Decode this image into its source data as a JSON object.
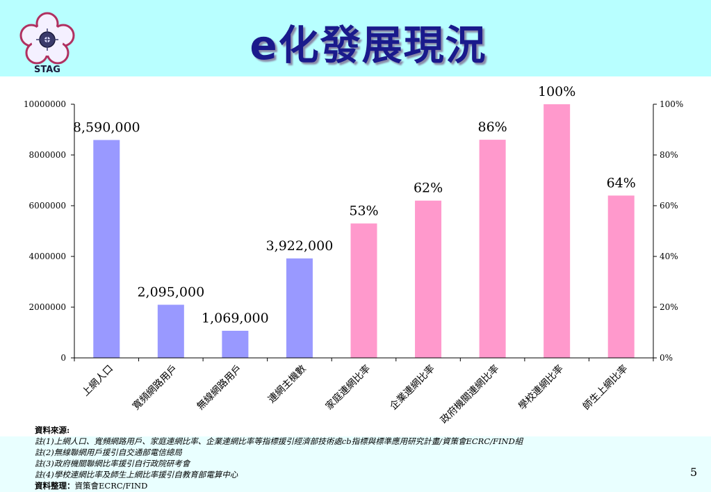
{
  "header": {
    "logo_text": "STAG",
    "title": "e化發展現況"
  },
  "chart_data": {
    "type": "bar",
    "categories": [
      "上網人口",
      "寬頻網路用戶",
      "無線網路用戶",
      "連網主機數",
      "家庭連網比率",
      "企業連網比率",
      "政府機關連網比率",
      "學校連網比率",
      "師生上網比率"
    ],
    "series": [
      {
        "axis": "left",
        "color": "#9999ff",
        "values": [
          8590000,
          2095000,
          1069000,
          3922000,
          null,
          null,
          null,
          null,
          null
        ]
      },
      {
        "axis": "right",
        "color": "#ff99cc",
        "values": [
          null,
          null,
          null,
          null,
          53,
          62,
          86,
          100,
          64
        ]
      }
    ],
    "data_labels": [
      "8,590,000",
      "2,095,000",
      "1,069,000",
      "3,922,000",
      "53%",
      "62%",
      "86%",
      "100%",
      "64%"
    ],
    "left_axis": {
      "ylim": [
        0,
        10000000
      ],
      "ticks": [
        "0",
        "2000000",
        "4000000",
        "6000000",
        "8000000",
        "10000000"
      ]
    },
    "right_axis": {
      "ylim": [
        0,
        100
      ],
      "ticks": [
        "0%",
        "20%",
        "40%",
        "60%",
        "80%",
        "100%"
      ]
    },
    "grid": false
  },
  "notes": {
    "source_heading": "資料來源:",
    "lines": [
      "註(1)上網人口、寬頻網路用戶、家庭連網比率、企業連網比率等指標援引經濟部技術處cb指標與標準應用研究計畫/資策會ECRC/FIND組",
      "註(2)無線聯網用戶援引自交通部電信總局",
      "註(3)政府機關聯網比率援引自行政院研考會",
      "註(4)學校連網比率及師生上網比率援引自教育部電算中心"
    ],
    "organizer_label": "資料整理：",
    "organizer": "資策會ECRC/FIND"
  },
  "page_number": "5"
}
